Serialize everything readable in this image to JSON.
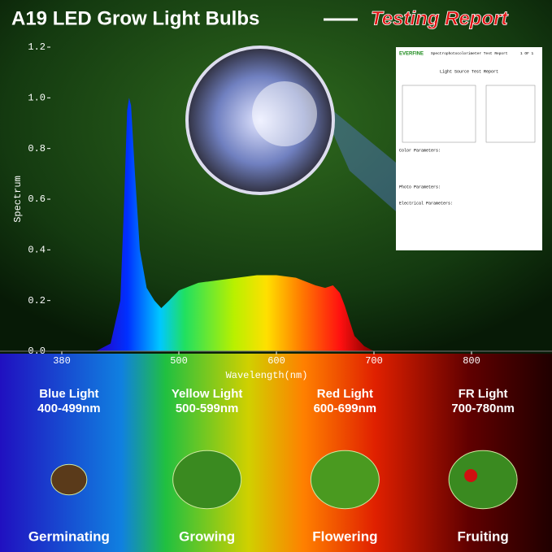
{
  "chart_data": {
    "type": "area",
    "title": "A19 LED Grow Light Bulbs",
    "subtitle": "Testing Report",
    "x_label": "Wavelength(nm)",
    "y_label": "Spectrum",
    "x": [
      415,
      430,
      440,
      444,
      447,
      449,
      451,
      455,
      460,
      467,
      475,
      482,
      490,
      500,
      520,
      540,
      560,
      580,
      600,
      620,
      640,
      650,
      658,
      665,
      670,
      675,
      680,
      690,
      700
    ],
    "values": [
      0,
      0.03,
      0.2,
      0.6,
      0.95,
      1.0,
      0.97,
      0.7,
      0.4,
      0.25,
      0.2,
      0.17,
      0.2,
      0.24,
      0.27,
      0.28,
      0.29,
      0.3,
      0.3,
      0.29,
      0.26,
      0.25,
      0.26,
      0.23,
      0.18,
      0.12,
      0.06,
      0.02,
      0
    ],
    "xlim": [
      380,
      800
    ],
    "xticks": [
      380,
      500,
      600,
      700,
      800
    ],
    "ylim": [
      0,
      1.2
    ],
    "yticks": [
      {
        "value": 0,
        "label": "0.0"
      },
      0.2,
      0.4,
      0.6,
      0.8,
      {
        "value": 1,
        "label": "1.0"
      },
      1.2
    ]
  },
  "report": {
    "brand": "EVERFINE",
    "title": "Spectrophotocolorimeter Test Report",
    "page": "1 OF 1",
    "heading": "Light Source Test Report",
    "sections": [
      "Color Parameters:",
      "Photo Parameters:",
      "Electrical Parameters:"
    ]
  },
  "bands": [
    {
      "label": "Blue Light",
      "range": "400-499nm",
      "stage": "Germinating"
    },
    {
      "label": "Yellow Light",
      "range": "500-599nm",
      "stage": "Growing"
    },
    {
      "label": "Red Light",
      "range": "600-699nm",
      "stage": "Flowering"
    },
    {
      "label": "FR Light",
      "range": "700-780nm",
      "stage": "Fruiting"
    }
  ]
}
